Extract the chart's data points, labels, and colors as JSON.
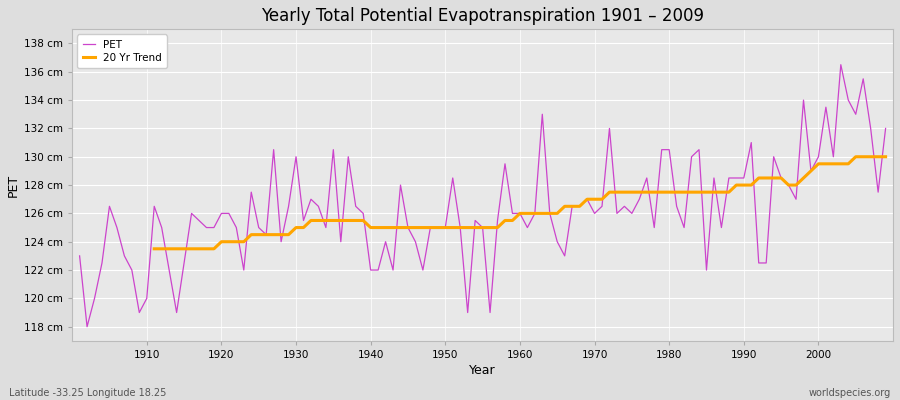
{
  "title": "Yearly Total Potential Evapotranspiration 1901 – 2009",
  "xlabel": "Year",
  "ylabel": "PET",
  "lat_lon_label": "Latitude -33.25 Longitude 18.25",
  "watermark": "worldspecies.org",
  "pet_color": "#CC44CC",
  "trend_color": "#FFA500",
  "fig_bg_color": "#DEDEDE",
  "plot_bg_color": "#E8E8E8",
  "grid_color": "#FFFFFF",
  "ylim": [
    117,
    139
  ],
  "ytick_min": 118,
  "ytick_max": 138,
  "ytick_step": 2,
  "years": [
    1901,
    1902,
    1903,
    1904,
    1905,
    1906,
    1907,
    1908,
    1909,
    1910,
    1911,
    1912,
    1913,
    1914,
    1915,
    1916,
    1917,
    1918,
    1919,
    1920,
    1921,
    1922,
    1923,
    1924,
    1925,
    1926,
    1927,
    1928,
    1929,
    1930,
    1931,
    1932,
    1933,
    1934,
    1935,
    1936,
    1937,
    1938,
    1939,
    1940,
    1941,
    1942,
    1943,
    1944,
    1945,
    1946,
    1947,
    1948,
    1949,
    1950,
    1951,
    1952,
    1953,
    1954,
    1955,
    1956,
    1957,
    1958,
    1959,
    1960,
    1961,
    1962,
    1963,
    1964,
    1965,
    1966,
    1967,
    1968,
    1969,
    1970,
    1971,
    1972,
    1973,
    1974,
    1975,
    1976,
    1977,
    1978,
    1979,
    1980,
    1981,
    1982,
    1983,
    1984,
    1985,
    1986,
    1987,
    1988,
    1989,
    1990,
    1991,
    1992,
    1993,
    1994,
    1995,
    1996,
    1997,
    1998,
    1999,
    2000,
    2001,
    2002,
    2003,
    2004,
    2005,
    2006,
    2007,
    2008,
    2009
  ],
  "pet_values": [
    123.0,
    118.0,
    120.0,
    122.5,
    126.5,
    125.0,
    123.0,
    122.0,
    119.0,
    120.0,
    126.5,
    125.0,
    122.0,
    119.0,
    122.5,
    126.0,
    125.5,
    125.0,
    125.0,
    126.0,
    126.0,
    125.0,
    122.0,
    127.5,
    125.0,
    124.5,
    130.5,
    124.0,
    126.5,
    130.0,
    125.5,
    127.0,
    126.5,
    125.0,
    130.5,
    124.0,
    130.0,
    126.5,
    126.0,
    122.0,
    122.0,
    124.0,
    122.0,
    128.0,
    125.0,
    124.0,
    122.0,
    125.0,
    125.0,
    125.0,
    128.5,
    125.0,
    119.0,
    125.5,
    125.0,
    119.0,
    125.5,
    129.5,
    126.0,
    126.0,
    125.0,
    126.0,
    133.0,
    126.0,
    124.0,
    123.0,
    126.5,
    126.5,
    127.0,
    126.0,
    126.5,
    132.0,
    126.0,
    126.5,
    126.0,
    127.0,
    128.5,
    125.0,
    130.5,
    130.5,
    126.5,
    125.0,
    130.0,
    130.5,
    122.0,
    128.5,
    125.0,
    128.5,
    128.5,
    128.5,
    131.0,
    122.5,
    122.5,
    130.0,
    128.5,
    128.0,
    127.0,
    134.0,
    129.0,
    130.0,
    133.5,
    130.0,
    136.5,
    134.0,
    133.0,
    135.5,
    132.0,
    127.5,
    132.0
  ],
  "trend_values": [
    null,
    null,
    null,
    null,
    null,
    null,
    null,
    null,
    null,
    null,
    123.5,
    123.5,
    123.5,
    123.5,
    123.5,
    123.5,
    123.5,
    123.5,
    123.5,
    124.0,
    124.0,
    124.0,
    124.0,
    124.5,
    124.5,
    124.5,
    124.5,
    124.5,
    124.5,
    125.0,
    125.0,
    125.5,
    125.5,
    125.5,
    125.5,
    125.5,
    125.5,
    125.5,
    125.5,
    125.0,
    125.0,
    125.0,
    125.0,
    125.0,
    125.0,
    125.0,
    125.0,
    125.0,
    125.0,
    125.0,
    125.0,
    125.0,
    125.0,
    125.0,
    125.0,
    125.0,
    125.0,
    125.5,
    125.5,
    126.0,
    126.0,
    126.0,
    126.0,
    126.0,
    126.0,
    126.5,
    126.5,
    126.5,
    127.0,
    127.0,
    127.0,
    127.5,
    127.5,
    127.5,
    127.5,
    127.5,
    127.5,
    127.5,
    127.5,
    127.5,
    127.5,
    127.5,
    127.5,
    127.5,
    127.5,
    127.5,
    127.5,
    127.5,
    128.0,
    128.0,
    128.0,
    128.5,
    128.5,
    128.5,
    128.5,
    128.0,
    128.0,
    128.5,
    129.0,
    129.5,
    129.5,
    129.5,
    129.5,
    129.5,
    130.0,
    130.0,
    130.0,
    130.0,
    130.0
  ]
}
